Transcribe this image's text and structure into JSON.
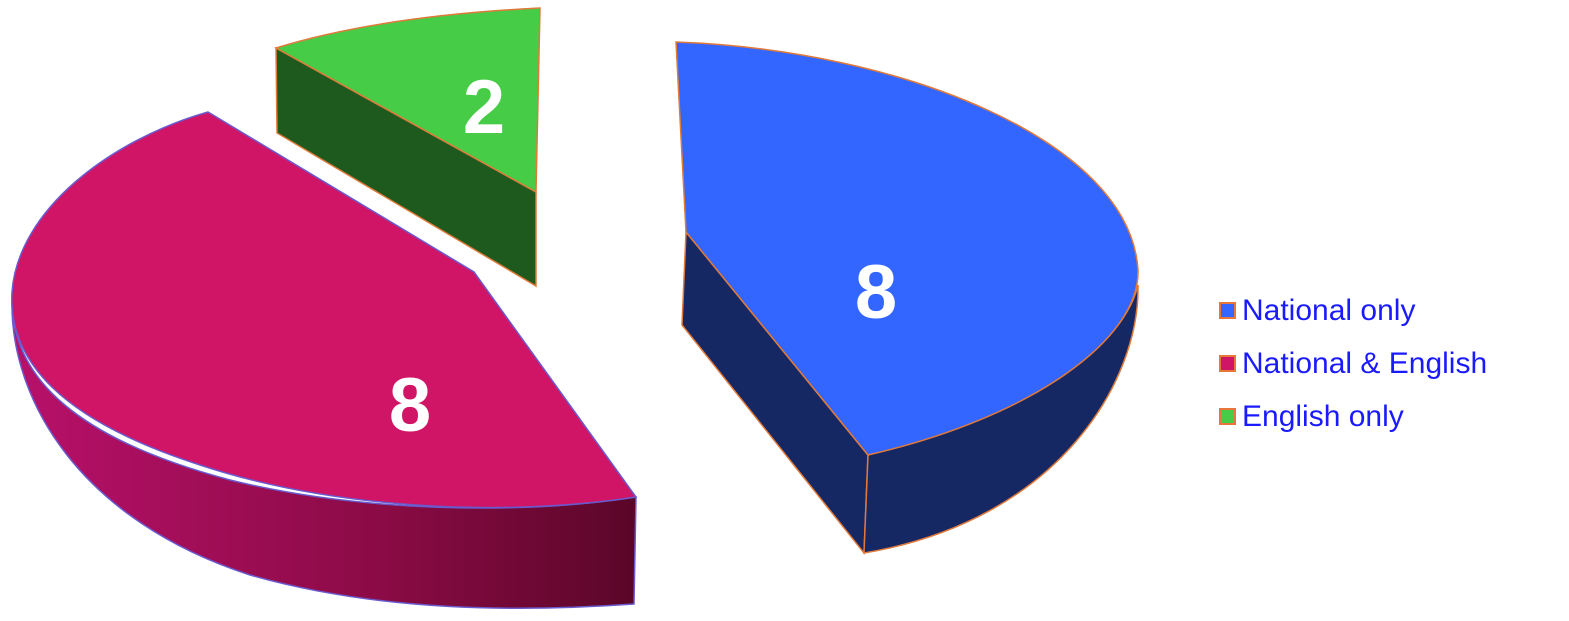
{
  "chart_data": {
    "type": "pie",
    "style": "3d-exploded",
    "slices": [
      {
        "label": "National only",
        "value": 8,
        "color": "#3366ff",
        "side_color": "#162864",
        "edge_color": "#e07a3a"
      },
      {
        "label": "National & English",
        "value": 8,
        "color": "#d01466",
        "side_color": "#9e0e4e",
        "edge_color": "#6a5acd"
      },
      {
        "label": "English only",
        "value": 2,
        "color": "#46cc46",
        "side_color": "#1e5a1e",
        "edge_color": "#e07a3a"
      }
    ],
    "legend_placement": "right",
    "legend_text_color": "#1a1aff"
  }
}
